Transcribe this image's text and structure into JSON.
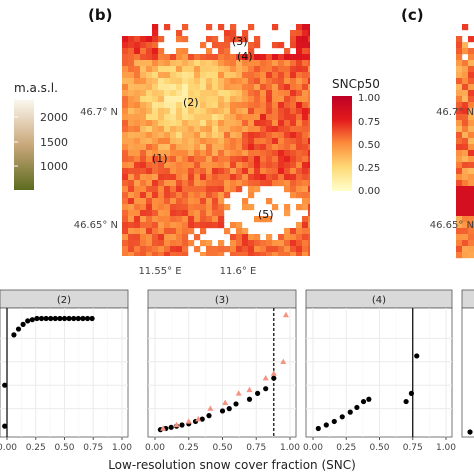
{
  "panels": {
    "b_label": "(b)",
    "c_label": "(c)"
  },
  "elevation_legend": {
    "title": "m.a.s.l.",
    "ticks": [
      "2000",
      "1500",
      "1000"
    ],
    "color_top": "#fbf7ee",
    "color_mid": "#c9a77a",
    "color_bottom": "#5c6b1f"
  },
  "map": {
    "y_ticks": [
      "46.7° N",
      "46.65° N"
    ],
    "x_ticks": [
      "11.55° E",
      "11.6° E"
    ],
    "region_labels": [
      "(1)",
      "(2)",
      "(3)",
      "(4)",
      "(5)"
    ]
  },
  "sncp50_legend": {
    "title": "SNCp50",
    "ticks": [
      "1.00",
      "0.75",
      "0.50",
      "0.25",
      "0.00"
    ],
    "colors": [
      "#bd0026",
      "#e31a1c",
      "#fd8d3c",
      "#fed976",
      "#ffffcc"
    ]
  },
  "facets": {
    "x_axis_title": "Low-resolution snow cover fraction (SNC)",
    "x_ticks": [
      "0.00",
      "0.25",
      "0.50",
      "0.75",
      "1.00"
    ],
    "strip_labels": [
      "(2)",
      "(3)",
      "(4)"
    ]
  },
  "colors": {
    "strip_bg": "#d9d9d9",
    "grid": "#ebebeb",
    "point": "#000000",
    "triangle": "#f4937f"
  },
  "chart_data": [
    {
      "type": "scatter",
      "panel": "(2)",
      "xlim": [
        0,
        1
      ],
      "vline": 0.0,
      "series": [
        {
          "marker": "circle",
          "x": [
            -0.02,
            -0.02,
            0.06,
            0.1,
            0.14,
            0.18,
            0.22,
            0.26,
            0.3,
            0.34,
            0.38,
            0.42,
            0.46,
            0.5,
            0.54,
            0.58,
            0.62,
            0.66,
            0.7,
            0.74
          ],
          "y": [
            0.4,
            0.05,
            0.83,
            0.88,
            0.92,
            0.95,
            0.96,
            0.97,
            0.97,
            0.97,
            0.97,
            0.97,
            0.97,
            0.97,
            0.97,
            0.97,
            0.97,
            0.97,
            0.97,
            0.97
          ]
        }
      ]
    },
    {
      "type": "scatter",
      "panel": "(3)",
      "xlim": [
        0,
        1
      ],
      "vline": 0.88,
      "series": [
        {
          "marker": "circle",
          "x": [
            0.04,
            0.08,
            0.12,
            0.16,
            0.2,
            0.25,
            0.3,
            0.35,
            0.4,
            0.5,
            0.55,
            0.6,
            0.7,
            0.76,
            0.82,
            0.88
          ],
          "y": [
            0.02,
            0.03,
            0.04,
            0.05,
            0.06,
            0.07,
            0.09,
            0.11,
            0.14,
            0.18,
            0.2,
            0.24,
            0.28,
            0.33,
            0.37,
            0.46
          ]
        },
        {
          "marker": "triangle",
          "x": [
            0.06,
            0.16,
            0.25,
            0.32,
            0.41,
            0.52,
            0.62,
            0.7,
            0.82,
            0.88,
            0.95,
            0.97
          ],
          "y": [
            0.03,
            0.06,
            0.09,
            0.11,
            0.2,
            0.25,
            0.33,
            0.36,
            0.46,
            0.5,
            0.6,
            1.0
          ]
        }
      ]
    },
    {
      "type": "scatter",
      "panel": "(4)",
      "xlim": [
        0,
        1
      ],
      "vline": 0.75,
      "series": [
        {
          "marker": "circle",
          "x": [
            0.04,
            0.1,
            0.16,
            0.22,
            0.28,
            0.33,
            0.38,
            0.42,
            0.7,
            0.74,
            0.78
          ],
          "y": [
            0.03,
            0.06,
            0.09,
            0.13,
            0.17,
            0.21,
            0.26,
            0.28,
            0.26,
            0.33,
            0.65
          ]
        }
      ]
    }
  ]
}
